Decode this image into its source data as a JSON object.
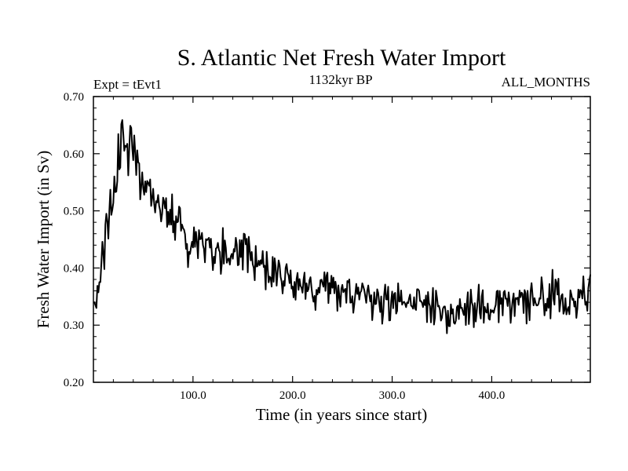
{
  "chart_data": {
    "type": "line",
    "title": "S. Atlantic Net Fresh Water Import",
    "subtitle_left": "Expt = tEvt1",
    "subtitle_center": "1132kyr BP",
    "subtitle_right": "ALL_MONTHS",
    "xlabel": "Time (in years since start)",
    "ylabel": "Fresh Water Import (in Sv)",
    "xlim": [
      0,
      499
    ],
    "ylim": [
      0.2,
      0.7
    ],
    "x_ticks": [
      100,
      200,
      300,
      400
    ],
    "x_tick_labels": [
      "100.0",
      "200.0",
      "300.0",
      "400.0"
    ],
    "y_ticks": [
      0.2,
      0.3,
      0.4,
      0.5,
      0.6,
      0.7
    ],
    "y_tick_labels": [
      "0.20",
      "0.30",
      "0.40",
      "0.50",
      "0.60",
      "0.70"
    ],
    "line_color": "#000000",
    "series": [
      {
        "name": "Net Fresh Water Import",
        "x": [
          1,
          3,
          5,
          7,
          9,
          11,
          13,
          15,
          17,
          19,
          21,
          23,
          25,
          27,
          29,
          31,
          33,
          35,
          37,
          39,
          41,
          43,
          45,
          47,
          49,
          51,
          55,
          60,
          65,
          70,
          75,
          80,
          85,
          90,
          95,
          100,
          105,
          110,
          115,
          120,
          125,
          130,
          135,
          140,
          145,
          150,
          155,
          160,
          165,
          170,
          175,
          180,
          185,
          190,
          195,
          200,
          205,
          210,
          215,
          220,
          225,
          230,
          235,
          240,
          245,
          250,
          255,
          260,
          265,
          270,
          275,
          280,
          285,
          290,
          295,
          300,
          305,
          310,
          315,
          320,
          325,
          330,
          335,
          340,
          345,
          350,
          355,
          360,
          365,
          370,
          375,
          380,
          385,
          390,
          395,
          400,
          405,
          410,
          415,
          420,
          425,
          430,
          435,
          440,
          445,
          450,
          455,
          460,
          465,
          470,
          475,
          480,
          485,
          490,
          495,
          499
        ],
        "values": [
          0.34,
          0.33,
          0.37,
          0.39,
          0.45,
          0.42,
          0.5,
          0.47,
          0.52,
          0.49,
          0.56,
          0.52,
          0.61,
          0.58,
          0.655,
          0.6,
          0.63,
          0.58,
          0.64,
          0.6,
          0.62,
          0.59,
          0.6,
          0.55,
          0.57,
          0.53,
          0.54,
          0.51,
          0.52,
          0.5,
          0.5,
          0.48,
          0.48,
          0.47,
          0.43,
          0.46,
          0.45,
          0.44,
          0.45,
          0.43,
          0.44,
          0.43,
          0.42,
          0.44,
          0.41,
          0.43,
          0.42,
          0.41,
          0.4,
          0.41,
          0.39,
          0.4,
          0.39,
          0.38,
          0.4,
          0.38,
          0.37,
          0.38,
          0.37,
          0.37,
          0.36,
          0.37,
          0.36,
          0.38,
          0.35,
          0.37,
          0.36,
          0.35,
          0.34,
          0.36,
          0.35,
          0.34,
          0.35,
          0.33,
          0.35,
          0.34,
          0.33,
          0.35,
          0.34,
          0.33,
          0.35,
          0.34,
          0.33,
          0.34,
          0.35,
          0.32,
          0.3,
          0.33,
          0.34,
          0.33,
          0.32,
          0.34,
          0.33,
          0.34,
          0.33,
          0.34,
          0.33,
          0.35,
          0.34,
          0.33,
          0.35,
          0.34,
          0.33,
          0.35,
          0.34,
          0.36,
          0.33,
          0.35,
          0.37,
          0.34,
          0.33,
          0.36,
          0.35,
          0.37,
          0.35,
          0.36
        ]
      }
    ]
  }
}
